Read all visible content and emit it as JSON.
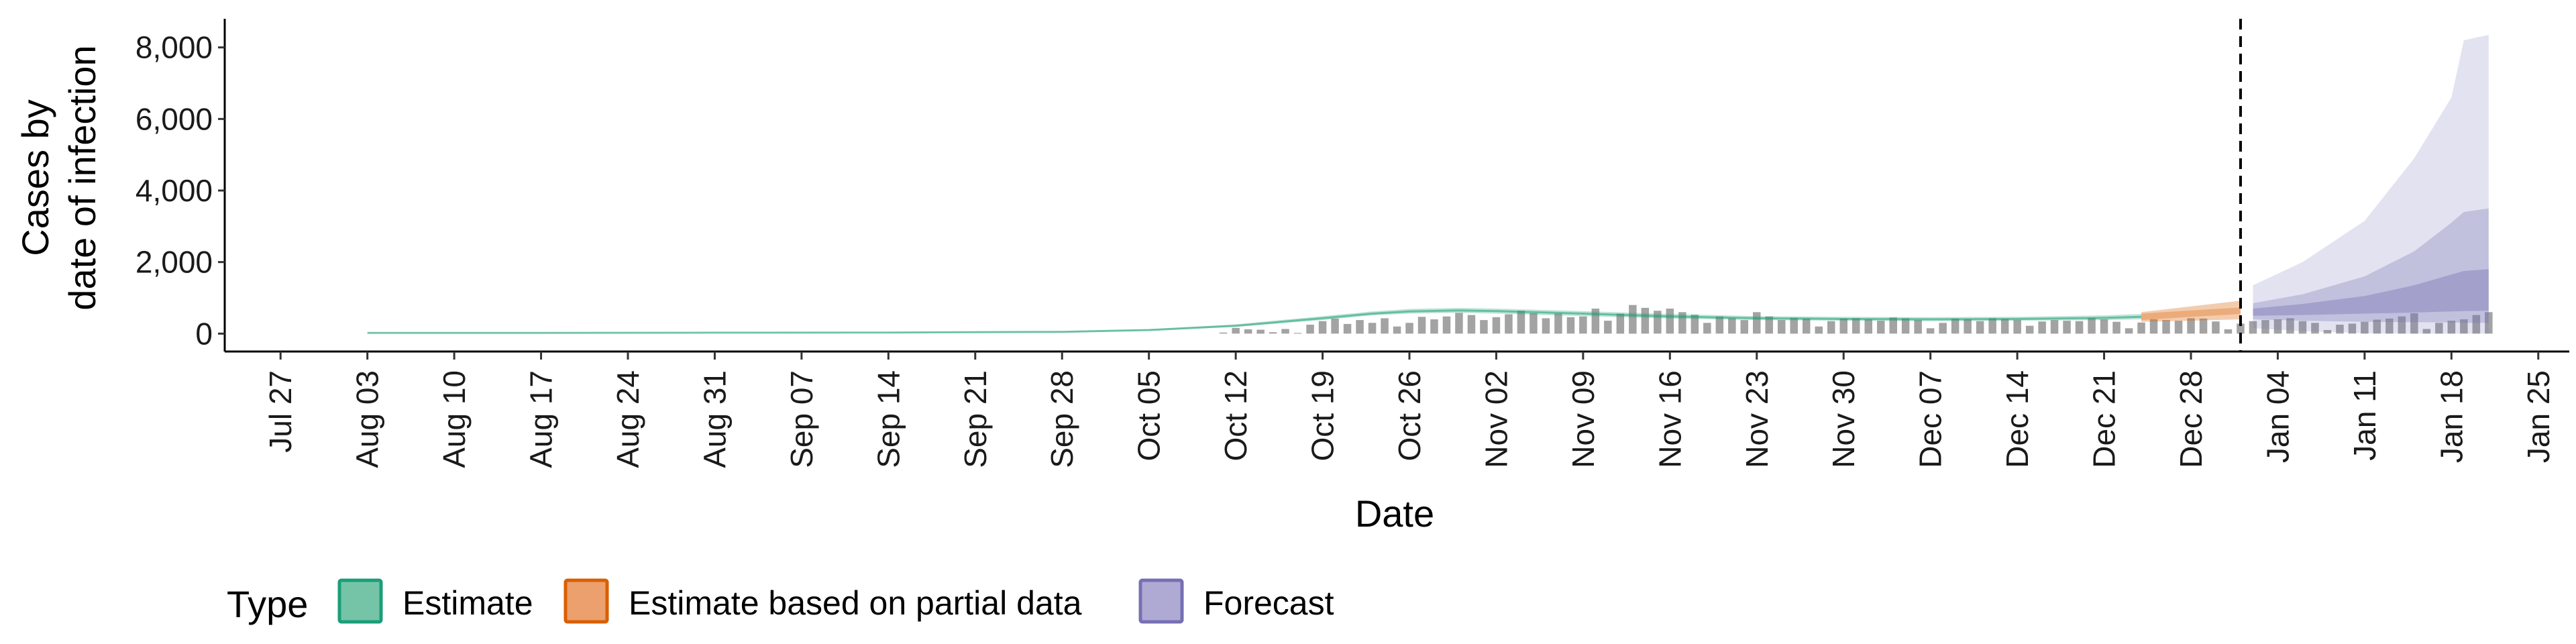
{
  "chart_data": {
    "type": "area",
    "xlabel": "Date",
    "ylabel_lines": [
      "Cases by",
      "date of infection"
    ],
    "ylim": [
      -500,
      8800
    ],
    "xlim_days": [
      -4.5,
      184.5
    ],
    "x_origin_date": "2020-07-27",
    "y_ticks": [
      {
        "value": 0,
        "label": "0"
      },
      {
        "value": 2000,
        "label": "2,000"
      },
      {
        "value": 4000,
        "label": "4,000"
      },
      {
        "value": 6000,
        "label": "6,000"
      },
      {
        "value": 8000,
        "label": "8,000"
      }
    ],
    "x_ticks": [
      {
        "day": 0,
        "label": "Jul 27"
      },
      {
        "day": 7,
        "label": "Aug 03"
      },
      {
        "day": 14,
        "label": "Aug 10"
      },
      {
        "day": 21,
        "label": "Aug 17"
      },
      {
        "day": 28,
        "label": "Aug 24"
      },
      {
        "day": 35,
        "label": "Aug 31"
      },
      {
        "day": 42,
        "label": "Sep 07"
      },
      {
        "day": 49,
        "label": "Sep 14"
      },
      {
        "day": 56,
        "label": "Sep 21"
      },
      {
        "day": 63,
        "label": "Sep 28"
      },
      {
        "day": 70,
        "label": "Oct 05"
      },
      {
        "day": 77,
        "label": "Oct 12"
      },
      {
        "day": 84,
        "label": "Oct 19"
      },
      {
        "day": 91,
        "label": "Oct 26"
      },
      {
        "day": 98,
        "label": "Nov 02"
      },
      {
        "day": 105,
        "label": "Nov 09"
      },
      {
        "day": 112,
        "label": "Nov 16"
      },
      {
        "day": 119,
        "label": "Nov 23"
      },
      {
        "day": 126,
        "label": "Nov 30"
      },
      {
        "day": 133,
        "label": "Dec 07"
      },
      {
        "day": 140,
        "label": "Dec 14"
      },
      {
        "day": 147,
        "label": "Dec 21"
      },
      {
        "day": 154,
        "label": "Dec 28"
      },
      {
        "day": 161,
        "label": "Jan 04"
      },
      {
        "day": 168,
        "label": "Jan 11"
      },
      {
        "day": 175,
        "label": "Jan 18"
      },
      {
        "day": 182,
        "label": "Jan 25"
      }
    ],
    "forecast_start_day": 158,
    "reported_cases": {
      "start_day": 76,
      "values": [
        30,
        160,
        120,
        110,
        40,
        130,
        20,
        250,
        350,
        420,
        270,
        380,
        300,
        430,
        200,
        300,
        470,
        400,
        480,
        580,
        520,
        380,
        460,
        540,
        640,
        570,
        430,
        560,
        460,
        480,
        700,
        360,
        560,
        800,
        720,
        640,
        700,
        600,
        530,
        300,
        480,
        430,
        380,
        600,
        480,
        380,
        440,
        420,
        200,
        350,
        420,
        430,
        400,
        360,
        450,
        430,
        380,
        150,
        300,
        420,
        400,
        350,
        430,
        410,
        380,
        220,
        340,
        380,
        360,
        350,
        440,
        400,
        330,
        150,
        310,
        400,
        380,
        360,
        430,
        420,
        340,
        120,
        280,
        350,
        380,
        400,
        430,
        350,
        300,
        100,
        250,
        280,
        330,
        390,
        420,
        480,
        570,
        130,
        300,
        360,
        400,
        520,
        600
      ]
    },
    "series": [
      {
        "name": "Estimate",
        "color": "#1b9e77",
        "days": [
          7,
          21,
          35,
          49,
          63,
          70,
          77,
          84,
          88,
          91,
          95,
          98,
          105,
          112,
          119,
          126,
          133,
          140,
          147,
          150
        ],
        "median": [
          20,
          22,
          26,
          30,
          50,
          100,
          220,
          430,
          560,
          620,
          650,
          630,
          560,
          480,
          430,
          410,
          400,
          410,
          440,
          470
        ],
        "lower": [
          10,
          12,
          15,
          18,
          35,
          80,
          190,
          380,
          510,
          560,
          580,
          560,
          490,
          420,
          380,
          360,
          350,
          360,
          380,
          400
        ],
        "upper": [
          30,
          32,
          36,
          42,
          70,
          125,
          260,
          490,
          620,
          690,
          720,
          700,
          630,
          550,
          490,
          470,
          460,
          470,
          510,
          550
        ]
      },
      {
        "name": "Estimate based on partial data",
        "color": "#d95f02",
        "days": [
          150,
          154,
          158
        ],
        "median": [
          470,
          560,
          640
        ],
        "lower": [
          330,
          360,
          400
        ],
        "upper": [
          600,
          760,
          920
        ]
      },
      {
        "name": "Forecast",
        "color": "#7570b3",
        "days": [
          159,
          163,
          168,
          172,
          175,
          176,
          178
        ],
        "median": [
          600,
          660,
          730,
          790,
          850,
          860,
          880
        ],
        "lower90": [
          150,
          70,
          10,
          0,
          0,
          0,
          0
        ],
        "upper90": [
          1350,
          2000,
          3150,
          4900,
          6600,
          8200,
          8350
        ],
        "lower50": [
          400,
          360,
          330,
          320,
          310,
          300,
          300
        ],
        "upper50": [
          850,
          1100,
          1600,
          2300,
          3100,
          3400,
          3500
        ],
        "lower20": [
          500,
          520,
          560,
          590,
          620,
          630,
          640
        ],
        "upper20": [
          700,
          830,
          1050,
          1350,
          1650,
          1750,
          1800
        ]
      }
    ]
  },
  "legend": {
    "title": "Type",
    "items": [
      {
        "label": "Estimate",
        "fill": "#76c4a8",
        "stroke": "#1b9e77"
      },
      {
        "label": "Estimate based on partial data",
        "fill": "#eba06d",
        "stroke": "#d95f02"
      },
      {
        "label": "Forecast",
        "fill": "#aeaad4",
        "stroke": "#7570b3"
      }
    ]
  }
}
